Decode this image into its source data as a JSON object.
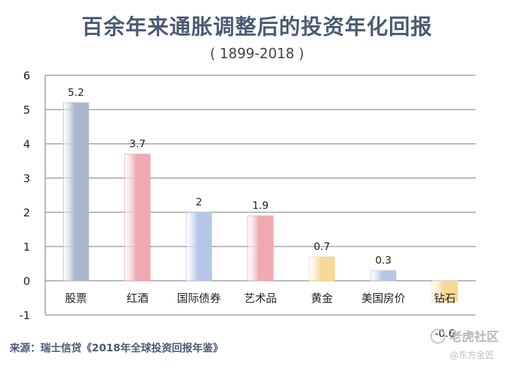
{
  "chart_data": {
    "type": "bar",
    "title": "百余年来通胀调整后的投资年化回报",
    "subtitle": "( 1899-2018 )",
    "xlabel": "",
    "ylabel": "",
    "categories": [
      "股票",
      "红酒",
      "国际债券",
      "艺术品",
      "黄金",
      "美国房价",
      "钻石"
    ],
    "values": [
      5.2,
      3.7,
      2,
      1.9,
      0.7,
      0.3,
      -0.6
    ],
    "value_labels": [
      "5.2",
      "3.7",
      "2",
      "1.9",
      "0.7",
      "0.3",
      "-0.6"
    ],
    "ylim": [
      -1,
      6
    ],
    "yticks": [
      "-1",
      "0",
      "1",
      "2",
      "3",
      "4",
      "5",
      "6"
    ],
    "grid": true,
    "legend": "none",
    "bar_colors": [
      "#aab6cc",
      "#eeaab0",
      "#b6c6e6",
      "#eeaab0",
      "#f8d896",
      "#b6c6e6",
      "#f8d896"
    ]
  },
  "source": "来源：瑞士信贷《2018年全球投资回报年鉴》",
  "watermark": {
    "primary": "老虎社区",
    "secondary": "@东方金匠"
  }
}
